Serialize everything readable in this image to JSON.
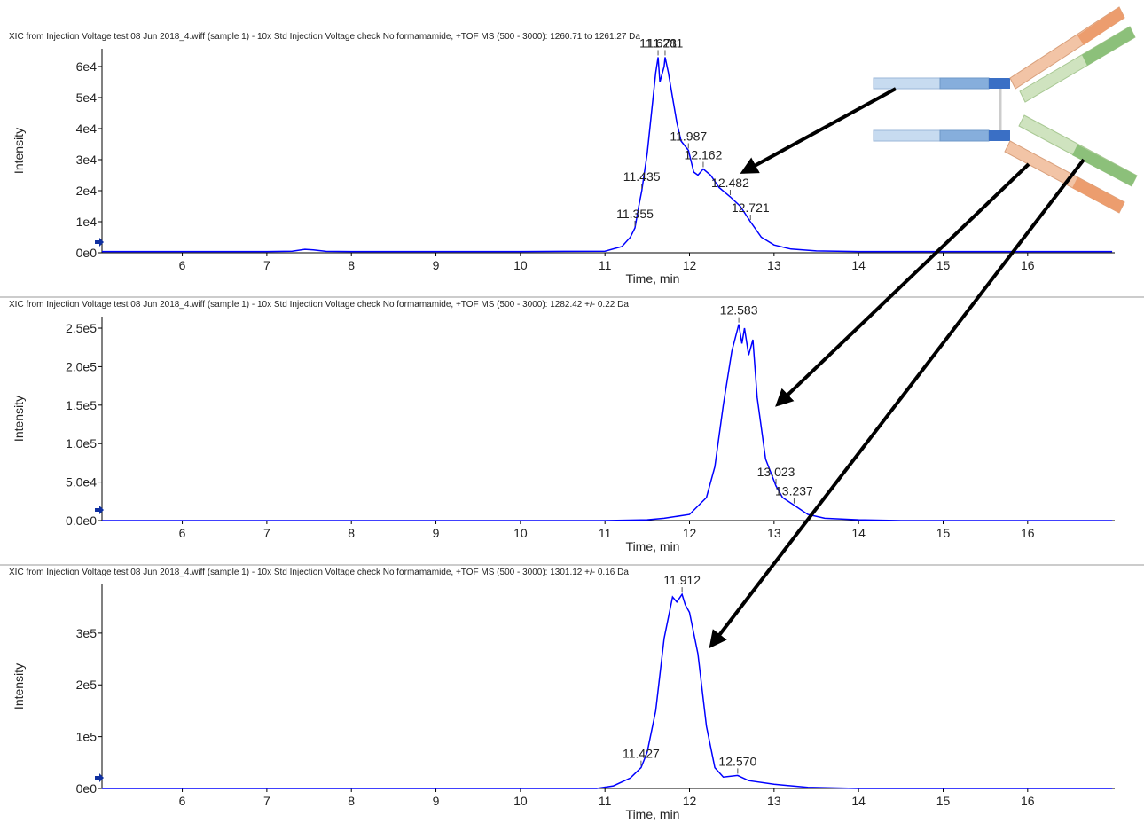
{
  "chart_data": [
    {
      "type": "line",
      "title": "XIC from Injection Voltage test 08 Jun 2018_4.wiff (sample 1) - 10x Std Injection Voltage check No formamamide, +TOF MS (500 - 3000): 1260.71 to 1261.27 Da",
      "ylabel": "Intensity",
      "xlabel": "Time, min",
      "xlim": [
        5.05,
        17.03
      ],
      "xticks": [
        6,
        7,
        8,
        9,
        10,
        11,
        12,
        13,
        14,
        15,
        16
      ],
      "ylim": [
        0,
        65700
      ],
      "yticks": [
        {
          "value": 0,
          "label": "0e0"
        },
        {
          "value": 10000,
          "label": "1e4"
        },
        {
          "value": 20000,
          "label": "2e4"
        },
        {
          "value": 30000,
          "label": "3e4"
        },
        {
          "value": 40000,
          "label": "4e4"
        },
        {
          "value": 50000,
          "label": "5e4"
        },
        {
          "value": 60000,
          "label": "6e4"
        }
      ],
      "series": [
        {
          "color": "#0000ff",
          "x": [
            5.05,
            6,
            7,
            7.3,
            7.45,
            7.55,
            7.7,
            8,
            9,
            10,
            11,
            11.2,
            11.3,
            11.355,
            11.4,
            11.435,
            11.5,
            11.55,
            11.6,
            11.628,
            11.65,
            11.7,
            11.711,
            11.75,
            11.8,
            11.85,
            11.9,
            11.987,
            12.05,
            12.1,
            12.162,
            12.25,
            12.35,
            12.482,
            12.6,
            12.721,
            12.85,
            13.0,
            13.2,
            13.5,
            14,
            15,
            16,
            17
          ],
          "values": [
            400,
            400,
            400,
            500,
            1100,
            900,
            450,
            400,
            400,
            400,
            500,
            2000,
            5000,
            8000,
            15000,
            20000,
            32000,
            45000,
            58000,
            63000,
            55000,
            60000,
            63000,
            58000,
            50000,
            42000,
            36000,
            33000,
            26000,
            25000,
            27000,
            25000,
            21000,
            18000,
            15000,
            10000,
            5000,
            2500,
            1200,
            600,
            400,
            400,
            400,
            400
          ]
        }
      ],
      "annotations": [
        {
          "x": 11.355,
          "y": 8000,
          "label": "11.355"
        },
        {
          "x": 11.435,
          "y": 20000,
          "label": "11.435"
        },
        {
          "x": 11.628,
          "y": 63000,
          "label": "11.628"
        },
        {
          "x": 11.711,
          "y": 63000,
          "label": "11.711"
        },
        {
          "x": 11.987,
          "y": 33000,
          "label": "11.987"
        },
        {
          "x": 12.162,
          "y": 27000,
          "label": "12.162"
        },
        {
          "x": 12.482,
          "y": 18000,
          "label": "12.482"
        },
        {
          "x": 12.721,
          "y": 10000,
          "label": "12.721"
        }
      ]
    },
    {
      "type": "line",
      "title": "XIC from Injection Voltage test 08 Jun 2018_4.wiff (sample 1) - 10x Std Injection Voltage check No formamamide, +TOF MS (500 - 3000): 1282.42 +/- 0.22 Da",
      "ylabel": "Intensity",
      "xlabel": "Time, min",
      "xlim": [
        5.05,
        17.03
      ],
      "xticks": [
        6,
        7,
        8,
        9,
        10,
        11,
        12,
        13,
        14,
        15,
        16
      ],
      "ylim": [
        0,
        265000
      ],
      "yticks": [
        {
          "value": 0,
          "label": "0.0e0"
        },
        {
          "value": 50000,
          "label": "5.0e4"
        },
        {
          "value": 100000,
          "label": "1.0e5"
        },
        {
          "value": 150000,
          "label": "1.5e5"
        },
        {
          "value": 200000,
          "label": "2.0e5"
        },
        {
          "value": 250000,
          "label": "2.5e5"
        }
      ],
      "series": [
        {
          "color": "#0000ff",
          "x": [
            5.05,
            8,
            11,
            11.5,
            11.7,
            12.0,
            12.2,
            12.3,
            12.4,
            12.5,
            12.583,
            12.62,
            12.65,
            12.7,
            12.75,
            12.8,
            12.9,
            13.023,
            13.1,
            13.237,
            13.4,
            13.6,
            14,
            14.5,
            17
          ],
          "values": [
            0,
            0,
            0,
            1000,
            3000,
            8000,
            30000,
            70000,
            150000,
            220000,
            255000,
            230000,
            250000,
            215000,
            235000,
            160000,
            80000,
            45000,
            30000,
            20000,
            8000,
            3000,
            1000,
            0,
            0
          ]
        }
      ],
      "annotations": [
        {
          "x": 12.583,
          "y": 255000,
          "label": "12.583"
        },
        {
          "x": 13.023,
          "y": 45000,
          "label": "13.023"
        },
        {
          "x": 13.237,
          "y": 20000,
          "label": "13.237"
        }
      ]
    },
    {
      "type": "line",
      "title": "XIC from Injection Voltage test 08 Jun 2018_4.wiff (sample 1) - 10x Std Injection Voltage check No formamamide, +TOF MS (500 - 3000): 1301.12 +/- 0.16 Da",
      "ylabel": "Intensity",
      "xlabel": "Time, min",
      "xlim": [
        5.05,
        17.03
      ],
      "xticks": [
        6,
        7,
        8,
        9,
        10,
        11,
        12,
        13,
        14,
        15,
        16
      ],
      "ylim": [
        0,
        394000
      ],
      "yticks": [
        {
          "value": 0,
          "label": "0e0"
        },
        {
          "value": 100000,
          "label": "1e5"
        },
        {
          "value": 200000,
          "label": "2e5"
        },
        {
          "value": 300000,
          "label": "3e5"
        }
      ],
      "series": [
        {
          "color": "#0000ff",
          "x": [
            5.05,
            8,
            10.9,
            11.1,
            11.3,
            11.427,
            11.5,
            11.6,
            11.7,
            11.8,
            11.85,
            11.912,
            11.95,
            12.0,
            12.1,
            12.2,
            12.3,
            12.4,
            12.57,
            12.7,
            13.0,
            13.4,
            14,
            17
          ],
          "values": [
            0,
            0,
            0,
            5000,
            20000,
            40000,
            70000,
            150000,
            290000,
            370000,
            360000,
            375000,
            355000,
            340000,
            260000,
            120000,
            40000,
            22000,
            25000,
            15000,
            8000,
            2000,
            0,
            0
          ]
        }
      ],
      "annotations": [
        {
          "x": 11.427,
          "y": 40000,
          "label": "11.427"
        },
        {
          "x": 11.912,
          "y": 375000,
          "label": "11.912"
        },
        {
          "x": 12.57,
          "y": 25000,
          "label": "12.570"
        }
      ]
    }
  ]
}
